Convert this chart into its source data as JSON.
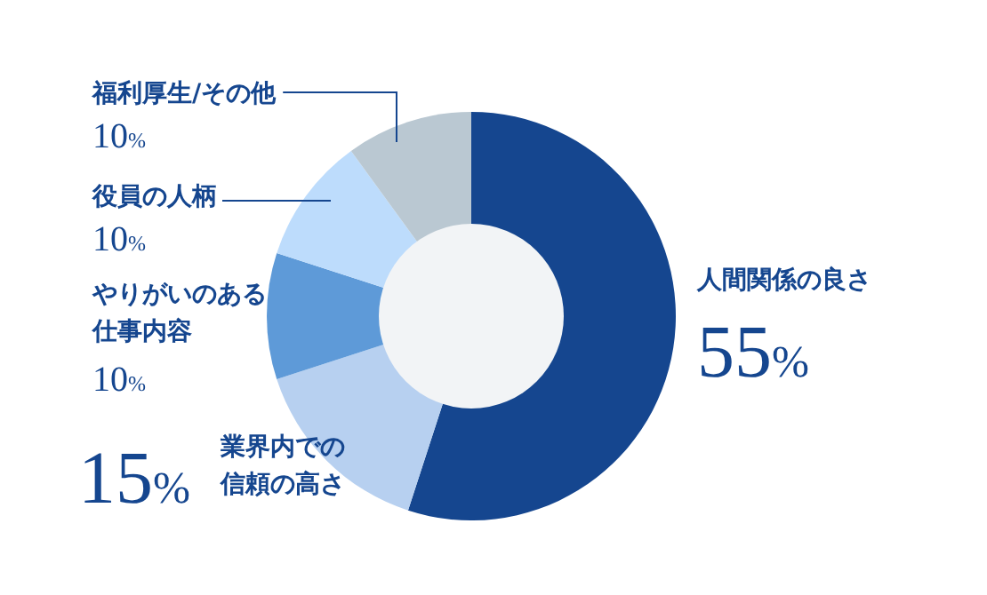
{
  "chart_data": {
    "type": "donut",
    "categories": [
      "人間関係の良さ",
      "業界内での信頼の高さ",
      "やりがいのある仕事内容",
      "役員の人柄",
      "福利厚生/その他"
    ],
    "values": [
      55,
      15,
      10,
      10,
      10
    ],
    "colors": [
      "#15468f",
      "#b7d0f0",
      "#5e9ad8",
      "#bddcfc",
      "#bac8d2"
    ],
    "value_labels": [
      "55%",
      "15%",
      "10%",
      "10%",
      "10%"
    ]
  }
}
